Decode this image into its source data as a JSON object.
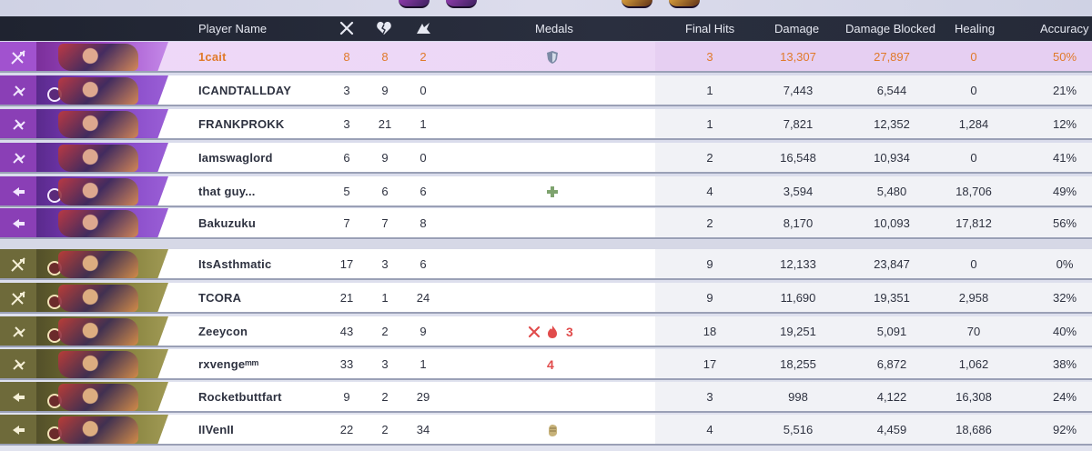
{
  "header": {
    "player_name": "Player Name",
    "medals": "Medals",
    "final_hits": "Final Hits",
    "damage": "Damage",
    "damage_blocked": "Damage Blocked",
    "healing": "Healing",
    "accuracy": "Accuracy",
    "icons": [
      "kills-swords-icon",
      "deaths-broken-heart-icon",
      "assists-icon"
    ]
  },
  "colors": {
    "team_a_role": "#8a3fb6",
    "team_b_role": "#6e6a3a",
    "highlight_text": "#e07a2a",
    "highlight_row": "#efd9f8"
  },
  "team_a": [
    {
      "name": "1cait",
      "role": "vanguard-icon",
      "k": "8",
      "d": "8",
      "a": "2",
      "medal": "shield-medal-icon",
      "fh": "3",
      "dmg": "13,307",
      "blk": "27,897",
      "heal": "0",
      "acc": "50%",
      "highlight": true
    },
    {
      "name": "ICANDTALLDAY",
      "role": "duelist-icon",
      "k": "3",
      "d": "9",
      "a": "0",
      "medal": "",
      "fh": "1",
      "dmg": "7,443",
      "blk": "6,544",
      "heal": "0",
      "acc": "21%"
    },
    {
      "name": "FRANKPROKK",
      "role": "duelist-icon",
      "k": "3",
      "d": "21",
      "a": "1",
      "medal": "",
      "fh": "1",
      "dmg": "7,821",
      "blk": "12,352",
      "heal": "1,284",
      "acc": "12%"
    },
    {
      "name": "Iamswaglord",
      "role": "duelist-icon",
      "k": "6",
      "d": "9",
      "a": "0",
      "medal": "",
      "fh": "2",
      "dmg": "16,548",
      "blk": "10,934",
      "heal": "0",
      "acc": "41%"
    },
    {
      "name": "that guy...",
      "role": "strategist-icon",
      "k": "5",
      "d": "6",
      "a": "6",
      "medal": "plus-medal-icon",
      "fh": "4",
      "dmg": "3,594",
      "blk": "5,480",
      "heal": "18,706",
      "acc": "49%"
    },
    {
      "name": "Bakuzuku",
      "role": "strategist-icon",
      "k": "7",
      "d": "7",
      "a": "8",
      "medal": "",
      "fh": "2",
      "dmg": "8,170",
      "blk": "10,093",
      "heal": "17,812",
      "acc": "56%"
    }
  ],
  "team_b": [
    {
      "name": "ItsAsthmatic",
      "role": "vanguard-icon",
      "k": "17",
      "d": "3",
      "a": "6",
      "medal": "",
      "fh": "9",
      "dmg": "12,133",
      "blk": "23,847",
      "heal": "0",
      "acc": "0%"
    },
    {
      "name": "TCORA",
      "role": "vanguard-icon",
      "k": "21",
      "d": "1",
      "a": "24",
      "medal": "",
      "fh": "9",
      "dmg": "11,690",
      "blk": "19,351",
      "heal": "2,958",
      "acc": "32%"
    },
    {
      "name": "Zeeycon",
      "role": "duelist-icon",
      "k": "43",
      "d": "2",
      "a": "9",
      "medal": "kills-flame-medal-icon",
      "medal_text": "3",
      "fh": "18",
      "dmg": "19,251",
      "blk": "5,091",
      "heal": "70",
      "acc": "40%"
    },
    {
      "name": "rxvengeᵐᵐ",
      "role": "duelist-icon",
      "k": "33",
      "d": "3",
      "a": "1",
      "medal": "streak-medal-icon",
      "medal_text": "4",
      "fh": "17",
      "dmg": "18,255",
      "blk": "6,872",
      "heal": "1,062",
      "acc": "38%"
    },
    {
      "name": "Rocketbuttfart",
      "role": "strategist-icon",
      "k": "9",
      "d": "2",
      "a": "29",
      "medal": "",
      "fh": "3",
      "dmg": "998",
      "blk": "4,122",
      "heal": "16,308",
      "acc": "24%"
    },
    {
      "name": "IIVenII",
      "role": "strategist-icon",
      "k": "22",
      "d": "2",
      "a": "34",
      "medal": "fist-medal-icon",
      "fh": "4",
      "dmg": "5,516",
      "blk": "4,459",
      "heal": "18,686",
      "acc": "92%"
    }
  ]
}
